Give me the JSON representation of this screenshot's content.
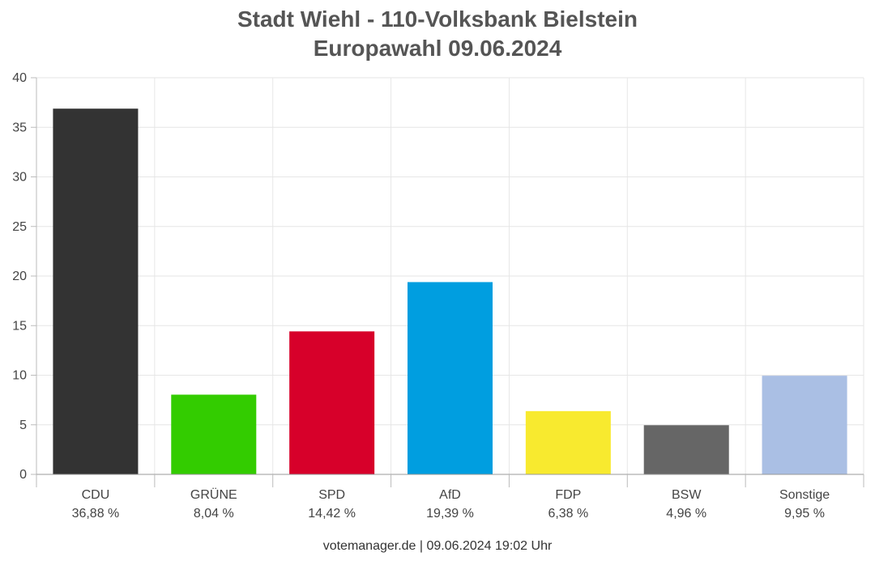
{
  "title_line1": "Stadt Wiehl - 110-Volksbank Bielstein",
  "title_line2": "Europawahl 09.06.2024",
  "footer": "votemanager.de | 09.06.2024 19:02 Uhr",
  "chart_data": {
    "type": "bar",
    "categories": [
      "CDU",
      "GRÜNE",
      "SPD",
      "AfD",
      "FDP",
      "BSW",
      "Sonstige"
    ],
    "value_labels": [
      "36,88 %",
      "8,04 %",
      "14,42 %",
      "19,39 %",
      "6,38 %",
      "4,96 %",
      "9,95 %"
    ],
    "values": [
      36.88,
      8.04,
      14.42,
      19.39,
      6.38,
      4.96,
      9.95
    ],
    "colors": [
      "#333333",
      "#33cc00",
      "#d7002a",
      "#009ee0",
      "#f8ea2f",
      "#666666",
      "#aabfe4"
    ],
    "ylim": [
      0,
      40
    ],
    "yticks": [
      "0",
      "5",
      "10",
      "15",
      "20",
      "25",
      "30",
      "35",
      "40"
    ],
    "grid": true
  }
}
